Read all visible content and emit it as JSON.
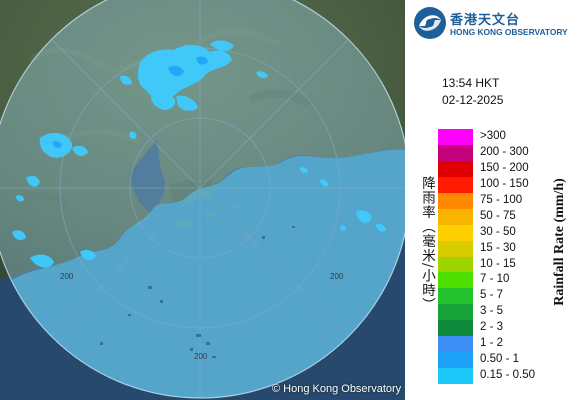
{
  "title": "",
  "logo": {
    "name_zh": "香港天文台",
    "name_en": "HONG KONG OBSERVATORY",
    "icon": "hong-kong-observatory-logo-icon"
  },
  "observation": {
    "time": "13:54 HKT",
    "date": "02-12-2025"
  },
  "legend": {
    "title_zh": "降雨率（毫米/小時）",
    "title_en": "Rainfall Rate (mm/h)",
    "items": [
      {
        "label": ">300",
        "color": "#ff00ff"
      },
      {
        "label": "200 - 300",
        "color": "#c4007c"
      },
      {
        "label": "150 - 200",
        "color": "#e00000"
      },
      {
        "label": "100 - 150",
        "color": "#ff1b00"
      },
      {
        "label": "75 - 100",
        "color": "#ff8a00"
      },
      {
        "label": "50 - 75",
        "color": "#f8b400"
      },
      {
        "label": "30 - 50",
        "color": "#ffd000"
      },
      {
        "label": "15 - 30",
        "color": "#d6cc00"
      },
      {
        "label": "10 - 15",
        "color": "#9ed400"
      },
      {
        "label": "7 - 10",
        "color": "#4fe000"
      },
      {
        "label": "5 - 7",
        "color": "#22c22c"
      },
      {
        "label": "3 - 5",
        "color": "#17a53a"
      },
      {
        "label": "2 - 3",
        "color": "#0f8a3c"
      },
      {
        "label": "1 - 2",
        "color": "#3d8ef5"
      },
      {
        "label": "0.50 - 1",
        "color": "#1ea2f8"
      },
      {
        "label": "0.15 - 0.50",
        "color": "#1ec8f8"
      }
    ]
  },
  "map": {
    "copyright": "© Hong Kong Observatory",
    "ring_labels": [
      "200",
      "200",
      "200"
    ],
    "colors": {
      "land": "#58704f",
      "sea": "#2f5a86",
      "range_circle": "#8ec4e0",
      "light_rain": "#3ecbff"
    }
  }
}
